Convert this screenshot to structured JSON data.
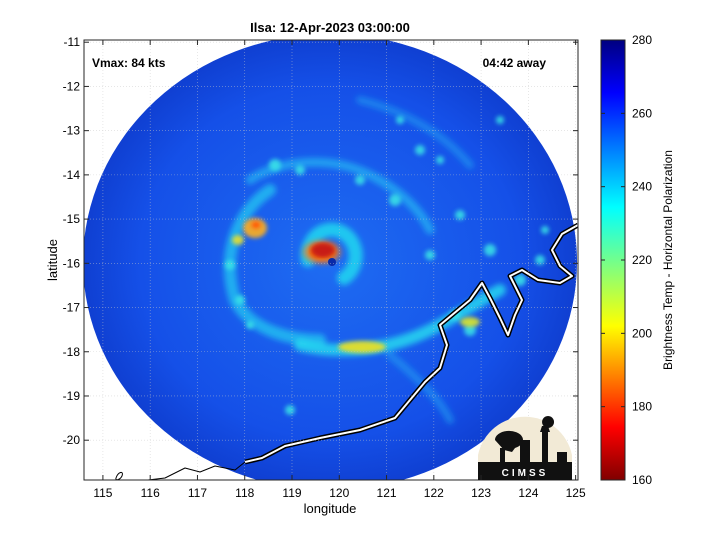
{
  "title": "Ilsa: 12-Apr-2023 03:00:00",
  "annotations": {
    "vmax": "Vmax: 84 kts",
    "away": "04:42 away"
  },
  "x_axis": {
    "label": "longitude",
    "ticks": [
      115,
      116,
      117,
      118,
      119,
      120,
      121,
      122,
      123,
      124,
      125
    ]
  },
  "y_axis": {
    "label": "latitude",
    "ticks": [
      -11,
      -12,
      -13,
      -14,
      -15,
      -16,
      -17,
      -18,
      -19,
      -20
    ]
  },
  "colorbar": {
    "label": "Brightness Temp - Horizontal Polarization",
    "ticks": [
      280,
      260,
      240,
      220,
      200,
      180,
      160
    ],
    "range": [
      160,
      280
    ],
    "colormap": "jet"
  },
  "logo": {
    "text": "CIMSS"
  },
  "colors": {
    "background_field": "#1450e6",
    "coastline": "#ffffff",
    "eye_warm": "#c81e14"
  }
}
